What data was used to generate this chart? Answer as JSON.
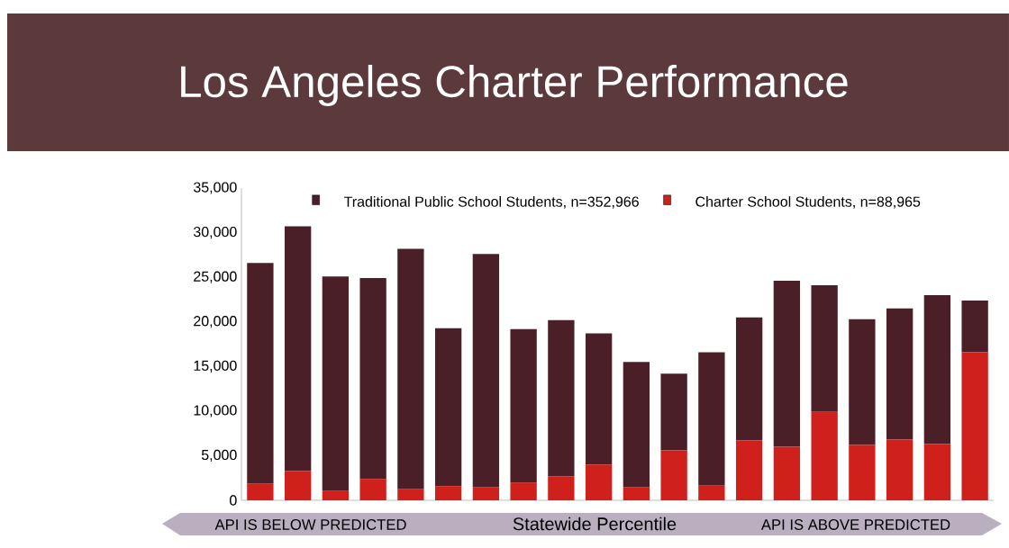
{
  "chart_data": {
    "type": "bar",
    "title": "Los Angeles Charter Performance",
    "xlabel": "Statewide Percentile",
    "annotations": [
      "API IS BELOW PREDICTED",
      "API IS ABOVE PREDICTED"
    ],
    "categories": [
      null,
      null,
      null,
      null,
      null,
      null,
      null,
      null,
      null,
      null,
      null,
      null,
      null,
      null,
      null,
      null,
      null,
      null,
      null,
      null
    ],
    "stacked": true,
    "series": [
      {
        "name": "Charter School Students, n=88,965",
        "color": "#d0201c",
        "values": [
          1900,
          3300,
          1100,
          2400,
          1300,
          1600,
          1500,
          2000,
          2700,
          4000,
          1500,
          5600,
          1700,
          6700,
          6000,
          9900,
          6200,
          6800,
          6300,
          16600
        ]
      },
      {
        "name": "Traditional Public School Students, n=352,966",
        "color": "#4a1f28",
        "values": [
          24700,
          27400,
          24000,
          22500,
          26900,
          17700,
          26100,
          17200,
          17500,
          14700,
          14000,
          8600,
          14900,
          13800,
          18600,
          14200,
          14100,
          14700,
          16700,
          5800
        ]
      }
    ],
    "ylim": [
      0,
      35000
    ],
    "yticks": [
      {
        "value": 0,
        "label": "0"
      },
      {
        "value": 5000,
        "label": "5,000"
      },
      {
        "value": 10000,
        "label": "10,000"
      },
      {
        "value": 15000,
        "label": "15,000"
      },
      {
        "value": 20000,
        "label": "20,000"
      },
      {
        "value": 25000,
        "label": "25,000"
      },
      {
        "value": 30000,
        "label": "30,000"
      },
      {
        "value": 35000,
        "label": "35,000"
      }
    ],
    "legend": "top",
    "grid": false
  }
}
